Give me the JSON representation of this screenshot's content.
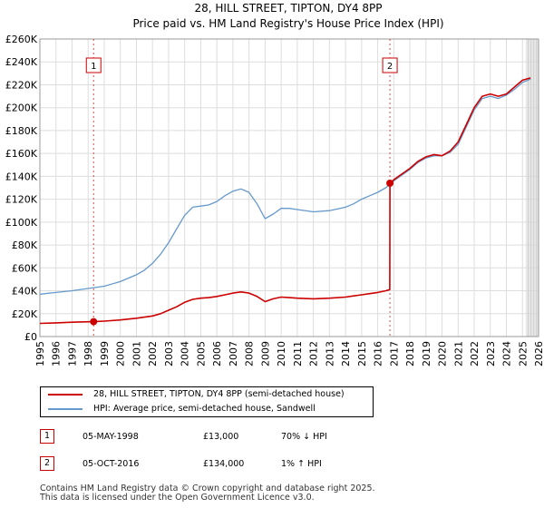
{
  "chart_data": {
    "type": "line",
    "title": "28, HILL STREET, TIPTON, DY4 8PP",
    "subtitle": "Price paid vs. HM Land Registry's House Price Index (HPI)",
    "xlim": [
      1995,
      2026
    ],
    "ylim": [
      0,
      260000
    ],
    "y_ticks": [
      0,
      20000,
      40000,
      60000,
      80000,
      100000,
      120000,
      140000,
      160000,
      180000,
      200000,
      220000,
      240000,
      260000
    ],
    "y_tick_labels": [
      "£0",
      "£20K",
      "£40K",
      "£60K",
      "£80K",
      "£100K",
      "£120K",
      "£140K",
      "£160K",
      "£180K",
      "£200K",
      "£220K",
      "£240K",
      "£260K"
    ],
    "x_ticks": [
      1995,
      1996,
      1997,
      1998,
      1999,
      2000,
      2001,
      2002,
      2003,
      2004,
      2005,
      2006,
      2007,
      2008,
      2009,
      2010,
      2011,
      2012,
      2013,
      2014,
      2015,
      2016,
      2017,
      2018,
      2019,
      2020,
      2021,
      2022,
      2023,
      2024,
      2025,
      2026
    ],
    "x_tick_labels": [
      "1995",
      "1996",
      "1997",
      "1998",
      "1999",
      "2000",
      "2001",
      "2002",
      "2003",
      "2004",
      "2005",
      "2006",
      "2007",
      "2008",
      "2009",
      "2010",
      "2011",
      "2012",
      "2013",
      "2014",
      "2015",
      "2016",
      "2017",
      "2018",
      "2019",
      "2020",
      "2021",
      "2022",
      "2023",
      "2024",
      "2025",
      "2026"
    ],
    "grid": true,
    "shaded_start": 2025.2,
    "series": [
      {
        "name": "28, HILL STREET, TIPTON, DY4 8PP (semi-detached house)",
        "color": "#cc0000",
        "x": [
          1995.0,
          1996.0,
          1997.0,
          1997.5,
          1998.34,
          1999.0,
          2000.0,
          2001.0,
          2002.0,
          2002.5,
          2003.0,
          2003.5,
          2004.0,
          2004.5,
          2005.0,
          2005.5,
          2006.0,
          2006.5,
          2007.0,
          2007.5,
          2008.0,
          2008.5,
          2009.0,
          2009.5,
          2010.0,
          2010.5,
          2011.0,
          2012.0,
          2013.0,
          2014.0,
          2014.5,
          2015.0,
          2015.5,
          2016.0,
          2016.5,
          2016.75,
          2016.76,
          2017.0,
          2017.5,
          2018.0,
          2018.5,
          2019.0,
          2019.5,
          2020.0,
          2020.5,
          2021.0,
          2021.5,
          2022.0,
          2022.5,
          2023.0,
          2023.5,
          2024.0,
          2024.5,
          2025.0,
          2025.5
        ],
        "values": [
          11500,
          12000,
          12500,
          12800,
          13000,
          13500,
          14500,
          16000,
          18000,
          20000,
          23000,
          26000,
          30000,
          32500,
          33500,
          34000,
          35000,
          36500,
          38000,
          39000,
          38000,
          35000,
          30500,
          33000,
          34500,
          34000,
          33500,
          33000,
          33500,
          34500,
          35500,
          36500,
          37500,
          38500,
          40000,
          41000,
          134000,
          137000,
          142000,
          147000,
          153000,
          157000,
          159000,
          158000,
          162000,
          170000,
          185000,
          200000,
          210000,
          212000,
          210000,
          212000,
          218000,
          224000,
          226000
        ]
      },
      {
        "name": "HPI: Average price, semi-detached house, Sandwell",
        "color": "#6699cc",
        "x": [
          1995.0,
          1996.0,
          1997.0,
          1998.0,
          1999.0,
          2000.0,
          2001.0,
          2001.5,
          2002.0,
          2002.5,
          2003.0,
          2003.5,
          2004.0,
          2004.5,
          2005.0,
          2005.5,
          2006.0,
          2006.5,
          2007.0,
          2007.5,
          2008.0,
          2008.5,
          2009.0,
          2009.5,
          2010.0,
          2010.5,
          2011.0,
          2012.0,
          2013.0,
          2014.0,
          2014.5,
          2015.0,
          2015.5,
          2016.0,
          2016.5,
          2017.0,
          2017.5,
          2018.0,
          2018.5,
          2019.0,
          2019.5,
          2020.0,
          2020.5,
          2021.0,
          2021.5,
          2022.0,
          2022.5,
          2023.0,
          2023.5,
          2024.0,
          2024.5,
          2025.0,
          2025.5
        ],
        "values": [
          37000,
          38500,
          40000,
          42000,
          44000,
          48000,
          54000,
          58000,
          64000,
          72000,
          82000,
          94000,
          106000,
          113000,
          114000,
          115000,
          118000,
          123000,
          127000,
          129000,
          126000,
          116000,
          103000,
          107000,
          112000,
          112000,
          111000,
          109000,
          110000,
          113000,
          116000,
          120000,
          123000,
          126000,
          130000,
          136000,
          141000,
          146000,
          152000,
          156000,
          158000,
          158000,
          161000,
          168000,
          183000,
          198000,
          208000,
          210000,
          208000,
          211000,
          216000,
          222000,
          225000
        ]
      }
    ],
    "markers": [
      {
        "label": "1",
        "x": 1998.34,
        "y": 13000
      },
      {
        "label": "2",
        "x": 2016.76,
        "y": 134000
      }
    ]
  },
  "legend": {
    "property_label": "28, HILL STREET, TIPTON, DY4 8PP (semi-detached house)",
    "hpi_label": "HPI: Average price, semi-detached house, Sandwell",
    "property_color": "#cc0000",
    "hpi_color": "#6699cc"
  },
  "sales": [
    {
      "num": "1",
      "date": "05-MAY-1998",
      "price": "£13,000",
      "hpi": "70% ↓ HPI"
    },
    {
      "num": "2",
      "date": "05-OCT-2016",
      "price": "£134,000",
      "hpi": "1% ↑ HPI"
    }
  ],
  "footer": {
    "line1": "Contains HM Land Registry data © Crown copyright and database right 2025.",
    "line2": "This data is licensed under the Open Government Licence v3.0."
  }
}
